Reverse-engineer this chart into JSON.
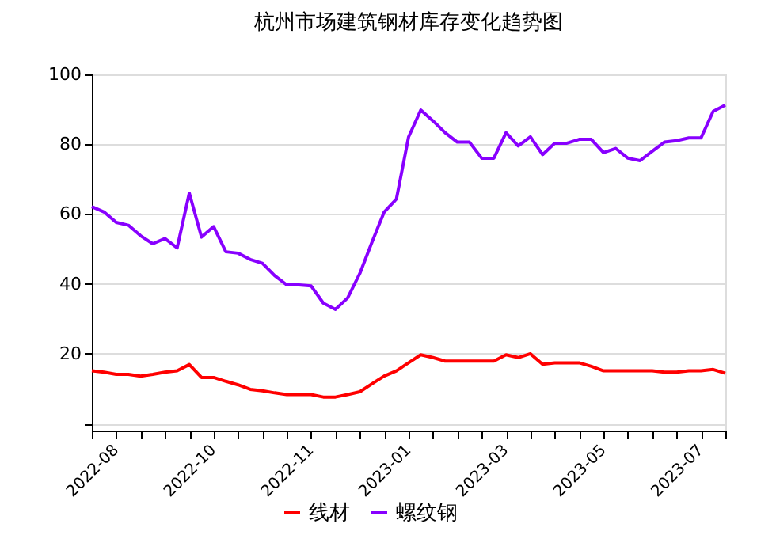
{
  "chart_data": {
    "type": "line",
    "title": "杭州市场建筑钢材库存变化趋势图",
    "categories": [
      "2022-08",
      null,
      null,
      null,
      null,
      null,
      null,
      null,
      "2022-10",
      null,
      null,
      null,
      null,
      null,
      null,
      null,
      "2022-11",
      null,
      null,
      null,
      null,
      null,
      null,
      null,
      "2023-01",
      null,
      null,
      null,
      null,
      null,
      null,
      null,
      "2023-03",
      null,
      null,
      null,
      null,
      null,
      null,
      null,
      "2023-05",
      null,
      null,
      null,
      null,
      null,
      null,
      null,
      "2023-07",
      null,
      null,
      null,
      null
    ],
    "series": [
      {
        "name": "线材",
        "color": "#ff0000",
        "values": [
          15.1,
          14.7,
          14.1,
          14.1,
          13.6,
          14.1,
          14.7,
          15.1,
          16.9,
          13.2,
          13.2,
          12.1,
          11.1,
          9.8,
          9.4,
          8.8,
          8.3,
          8.3,
          8.3,
          7.6,
          7.6,
          8.3,
          9.1,
          11.4,
          13.6,
          15.1,
          17.4,
          19.7,
          18.9,
          17.9,
          17.9,
          17.9,
          17.9,
          17.9,
          19.7,
          18.9,
          20,
          17,
          17.4,
          17.4,
          17.4,
          16.4,
          15.1,
          15.1,
          15.1,
          15.1,
          15.1,
          14.7,
          14.7,
          15.1,
          15.1,
          15.5,
          14.4
        ]
      },
      {
        "name": "螺纹钢",
        "color": "#8800ff",
        "values": [
          62.1,
          60.6,
          57.6,
          56.8,
          53.8,
          51.5,
          53,
          50.3,
          66,
          53.4,
          56.4,
          49.2,
          48.8,
          47,
          45.9,
          42.4,
          39.7,
          39.7,
          39.4,
          34.5,
          32.7,
          36,
          43,
          52,
          60.6,
          64.3,
          82.1,
          89.8,
          86.7,
          83.3,
          80.6,
          80.6,
          76,
          76,
          83.3,
          79.5,
          82.1,
          77,
          80.3,
          80.3,
          81.4,
          81.4,
          77.6,
          78.8,
          76,
          75.3,
          78,
          80.6,
          81,
          81.8,
          81.8,
          89.4,
          91.2
        ]
      }
    ],
    "ylim": [
      -2,
      100
    ],
    "yticks": [
      {
        "value": 0,
        "label": null
      },
      20,
      40,
      60,
      80,
      100
    ],
    "grid": "y",
    "legend": "bottom",
    "marker": "none",
    "line_style": "solid"
  }
}
